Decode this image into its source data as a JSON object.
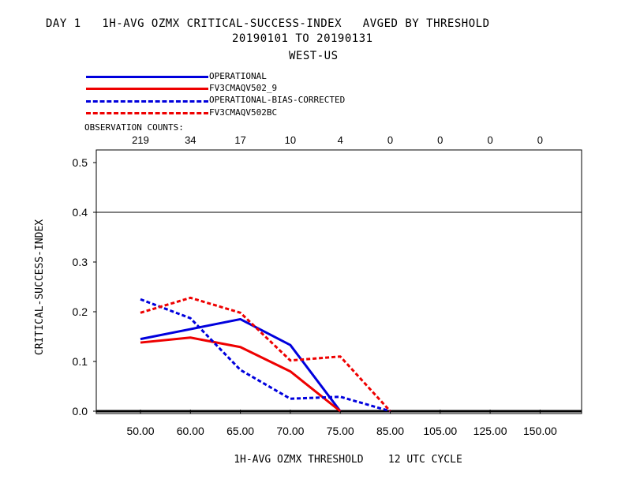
{
  "title": {
    "line1": "DAY 1   1H-AVG OZMX CRITICAL-SUCCESS-INDEX   AVGED BY THRESHOLD",
    "line2": "20190101 TO 20190131",
    "line3": "WEST-US"
  },
  "legend": [
    {
      "name": "OPERATIONAL",
      "color": "#0000dd",
      "dash": false
    },
    {
      "name": "FV3CMAQV502_9",
      "color": "#ee0000",
      "dash": false
    },
    {
      "name": "OPERATIONAL-BIAS-CORRECTED",
      "color": "#0000dd",
      "dash": true
    },
    {
      "name": "FV3CMAQV502BC",
      "color": "#ee0000",
      "dash": true
    }
  ],
  "observation_counts": {
    "label": "OBSERVATION COUNTS:",
    "values": [
      "219",
      "34",
      "17",
      "10",
      "4",
      "0",
      "0",
      "0",
      "0"
    ]
  },
  "chart_data": {
    "type": "line",
    "categories": [
      "50.00",
      "60.00",
      "65.00",
      "70.00",
      "75.00",
      "85.00",
      "105.00",
      "125.00",
      "150.00"
    ],
    "xlabel": "1H-AVG OZMX THRESHOLD    12 UTC CYCLE",
    "ylabel": "CRITICAL-SUCCESS-INDEX",
    "ylim": [
      0,
      0.5
    ],
    "yticks": [
      "0.0",
      "0.1",
      "0.2",
      "0.3",
      "0.4",
      "0.5"
    ],
    "reference_line": 0.4,
    "series": [
      {
        "name": "OPERATIONAL",
        "color": "#0000dd",
        "dashed": false,
        "values": [
          0.145,
          0.165,
          0.185,
          0.133,
          0.0,
          null,
          null,
          null,
          null
        ]
      },
      {
        "name": "FV3CMAQV502_9",
        "color": "#ee0000",
        "dashed": false,
        "values": [
          0.138,
          0.148,
          0.129,
          0.08,
          0.0,
          null,
          null,
          null,
          null
        ]
      },
      {
        "name": "OPERATIONAL-BIAS-CORRECTED",
        "color": "#0000dd",
        "dashed": true,
        "values": [
          0.225,
          0.187,
          0.083,
          0.025,
          0.029,
          0.0,
          null,
          null,
          null
        ]
      },
      {
        "name": "FV3CMAQV502BC",
        "color": "#ee0000",
        "dashed": true,
        "values": [
          0.198,
          0.228,
          0.198,
          0.102,
          0.11,
          0.0,
          null,
          null,
          null
        ]
      }
    ]
  }
}
